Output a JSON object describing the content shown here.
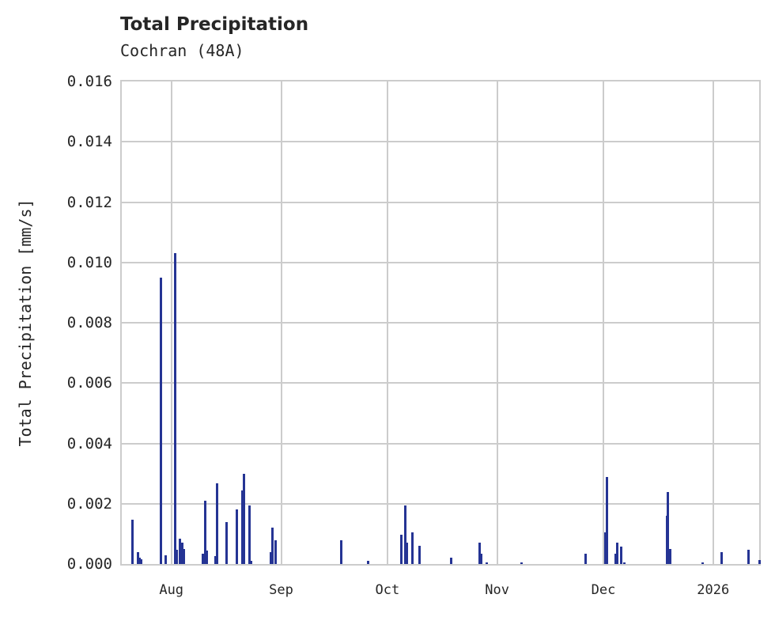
{
  "header": {
    "title": "Total Precipitation",
    "subtitle": "Cochran (48A)"
  },
  "colors": {
    "bar": "#253494",
    "grid": "#cccccc",
    "text": "#262626"
  },
  "chart_data": {
    "type": "bar",
    "title": "Total Precipitation",
    "subtitle": "Cochran (48A)",
    "xlabel": "",
    "ylabel": "Total Precipitation [mm/s]",
    "ylim": [
      0,
      0.016
    ],
    "xlim": [
      "2025-07-18",
      "2026-01-14"
    ],
    "grid": true,
    "legend": null,
    "yticks": [
      "0.000",
      "0.002",
      "0.004",
      "0.006",
      "0.008",
      "0.010",
      "0.012",
      "0.014",
      "0.016"
    ],
    "xticks": [
      {
        "label": "Aug",
        "date": "2025-08-01"
      },
      {
        "label": "Sep",
        "date": "2025-09-01"
      },
      {
        "label": "Oct",
        "date": "2025-10-01"
      },
      {
        "label": "Nov",
        "date": "2025-11-01"
      },
      {
        "label": "Dec",
        "date": "2025-12-01"
      },
      {
        "label": "2026",
        "date": "2026-01-01"
      }
    ],
    "bars": [
      {
        "date": "2025-07-21",
        "value": 0.00148
      },
      {
        "date": "2025-07-22.5",
        "value": 0.0004
      },
      {
        "date": "2025-07-23",
        "value": 0.00022
      },
      {
        "date": "2025-07-23.5",
        "value": 0.00015
      },
      {
        "date": "2025-07-29",
        "value": 0.0095
      },
      {
        "date": "2025-07-30.5",
        "value": 0.00028
      },
      {
        "date": "2025-08-02",
        "value": 0.0103
      },
      {
        "date": "2025-08-02.6",
        "value": 0.00048
      },
      {
        "date": "2025-08-03.5",
        "value": 0.00085
      },
      {
        "date": "2025-08-04",
        "value": 0.0007
      },
      {
        "date": "2025-08-04.5",
        "value": 0.0005
      },
      {
        "date": "2025-08-10",
        "value": 0.00035
      },
      {
        "date": "2025-08-10.5",
        "value": 0.0021
      },
      {
        "date": "2025-08-11",
        "value": 0.00045
      },
      {
        "date": "2025-08-13.5",
        "value": 0.00025
      },
      {
        "date": "2025-08-14",
        "value": 0.00268
      },
      {
        "date": "2025-08-16.5",
        "value": 0.0014
      },
      {
        "date": "2025-08-19.5",
        "value": 0.00182
      },
      {
        "date": "2025-08-21",
        "value": 0.00245
      },
      {
        "date": "2025-08-21.4",
        "value": 0.003
      },
      {
        "date": "2025-08-23",
        "value": 0.00195
      },
      {
        "date": "2025-08-23.5",
        "value": 0.0001
      },
      {
        "date": "2025-08-29",
        "value": 0.0004
      },
      {
        "date": "2025-08-29.5",
        "value": 0.0012
      },
      {
        "date": "2025-08-30.5",
        "value": 0.00078
      },
      {
        "date": "2025-09-18",
        "value": 0.00078
      },
      {
        "date": "2025-09-25.5",
        "value": 0.0001
      },
      {
        "date": "2025-10-05",
        "value": 0.00098
      },
      {
        "date": "2025-10-06",
        "value": 0.00195
      },
      {
        "date": "2025-10-06.5",
        "value": 0.0007
      },
      {
        "date": "2025-10-08",
        "value": 0.00105
      },
      {
        "date": "2025-10-10",
        "value": 0.0006
      },
      {
        "date": "2025-10-19",
        "value": 0.0002
      },
      {
        "date": "2025-10-27",
        "value": 0.0007
      },
      {
        "date": "2025-10-27.6",
        "value": 0.00035
      },
      {
        "date": "2025-10-29",
        "value": 5e-05
      },
      {
        "date": "2025-11-08",
        "value": 5e-05
      },
      {
        "date": "2025-11-26",
        "value": 0.00035
      },
      {
        "date": "2025-12-01.5",
        "value": 0.00105
      },
      {
        "date": "2025-12-02",
        "value": 0.00288
      },
      {
        "date": "2025-12-04.5",
        "value": 0.00035
      },
      {
        "date": "2025-12-05",
        "value": 0.0007
      },
      {
        "date": "2025-12-06",
        "value": 0.00058
      },
      {
        "date": "2025-12-07",
        "value": 5e-05
      },
      {
        "date": "2025-12-19",
        "value": 0.0016
      },
      {
        "date": "2025-12-19.3",
        "value": 0.0024
      },
      {
        "date": "2025-12-19.8",
        "value": 0.0005
      },
      {
        "date": "2025-12-29",
        "value": 5e-05
      },
      {
        "date": "2026-01-03.5",
        "value": 0.0004
      },
      {
        "date": "2026-01-11",
        "value": 0.00048
      },
      {
        "date": "2026-01-14",
        "value": 0.00012
      }
    ]
  }
}
